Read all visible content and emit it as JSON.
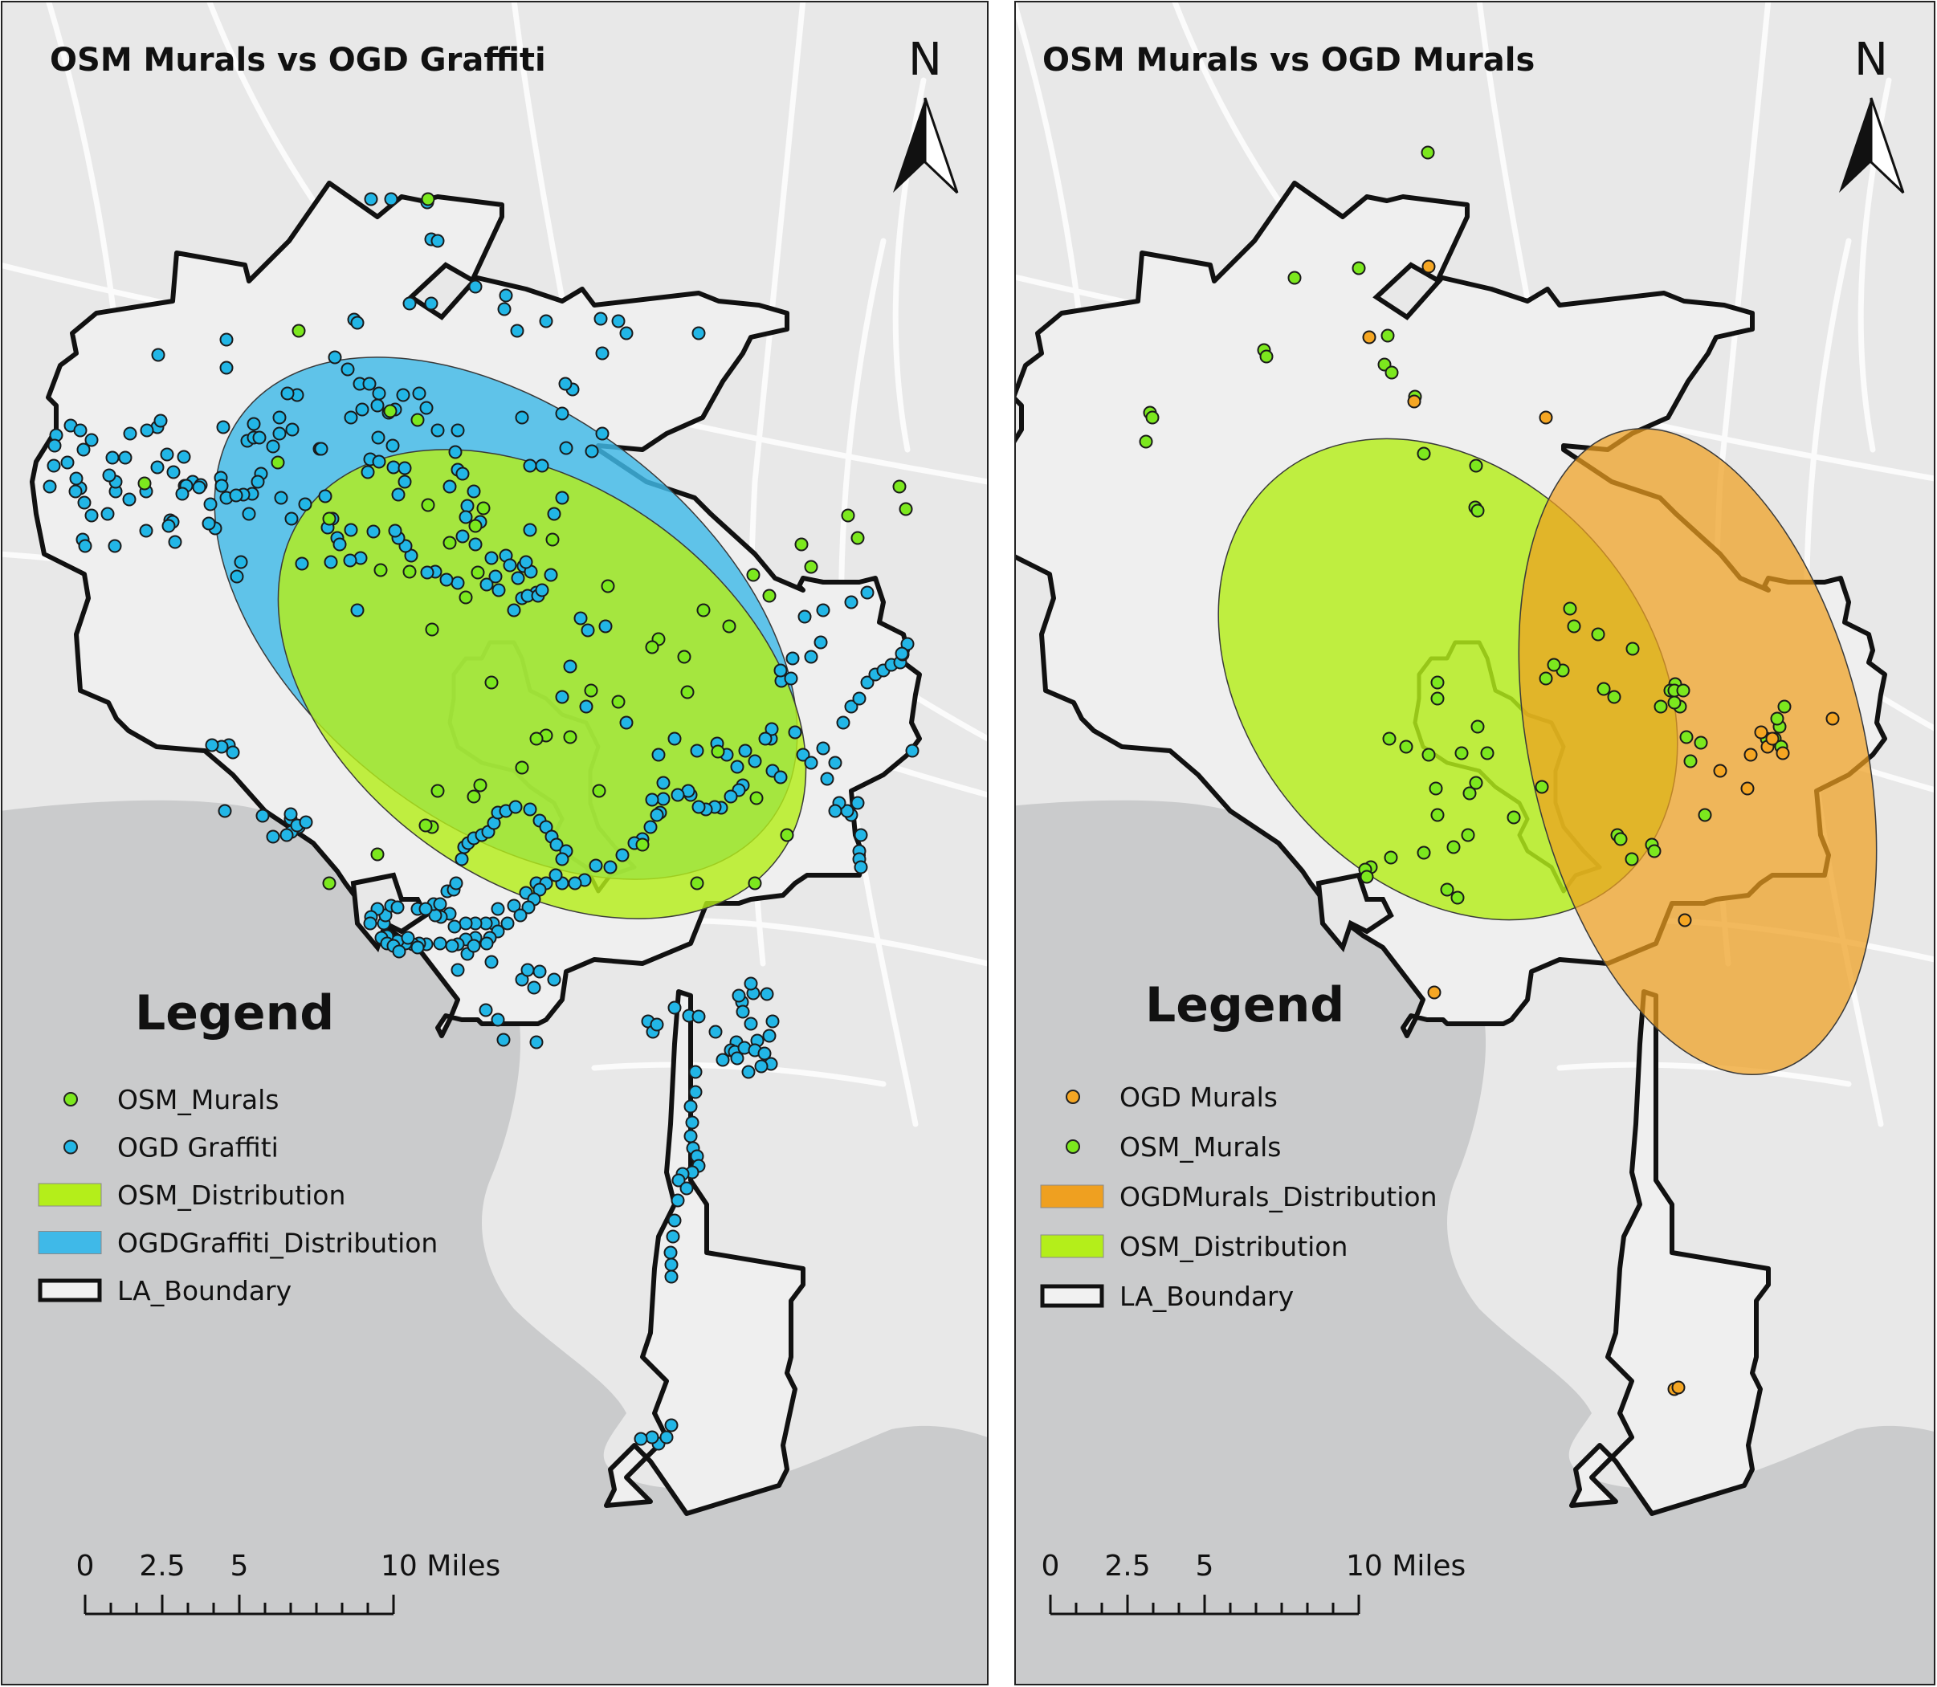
{
  "colors": {
    "osm_point": "#7CE81E",
    "ogd_graffiti_point": "#22B6E6",
    "ogd_murals_point": "#F5A623",
    "osm_distribution": "#B4EE1A",
    "ogd_graffiti_distribution": "#3FB9E8",
    "ogd_murals_distribution": "#EFA020",
    "boundary": "#111111",
    "ocean": "#CACBCC",
    "land": "#E8E8E8",
    "city_fill": "#EFEFEF"
  },
  "maps": [
    {
      "title": "OSM Murals vs OGD Graffiti",
      "north_label": "N",
      "legend_title": "Legend",
      "legend": [
        {
          "label": "OSM_Murals",
          "kind": "point",
          "color": "#7CE81E",
          "icon": "point-icon"
        },
        {
          "label": "OGD Graffiti",
          "kind": "point",
          "color": "#22B6E6",
          "icon": "point-icon"
        },
        {
          "label": "OSM_Distribution",
          "kind": "area",
          "color": "#B4EE1A",
          "icon": "area-swatch"
        },
        {
          "label": "OGDGraffiti_Distribution",
          "kind": "area",
          "color": "#3FB9E8",
          "icon": "area-swatch"
        },
        {
          "label": "LA_Boundary",
          "kind": "line",
          "color": "#111111",
          "icon": "boundary-swatch"
        }
      ],
      "scale_labels": [
        "0",
        "2.5",
        "5",
        "10 Miles"
      ]
    },
    {
      "title": "OSM Murals vs OGD Murals",
      "north_label": "N",
      "legend_title": "Legend",
      "legend": [
        {
          "label": "OGD Murals",
          "kind": "point",
          "color": "#F5A623",
          "icon": "point-icon"
        },
        {
          "label": "OSM_Murals",
          "kind": "point",
          "color": "#7CE81E",
          "icon": "point-icon"
        },
        {
          "label": "OGDMurals_Distribution",
          "kind": "area",
          "color": "#EFA020",
          "icon": "area-swatch"
        },
        {
          "label": "OSM_Distribution",
          "kind": "area",
          "color": "#B4EE1A",
          "icon": "area-swatch"
        },
        {
          "label": "LA_Boundary",
          "kind": "line",
          "color": "#111111",
          "icon": "boundary-swatch"
        }
      ],
      "scale_labels": [
        "0",
        "2.5",
        "5",
        "10 Miles"
      ]
    }
  ]
}
